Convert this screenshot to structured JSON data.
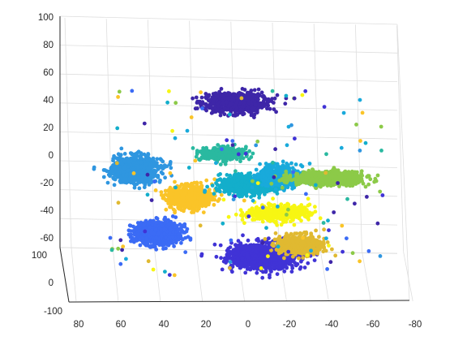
{
  "chart_data": {
    "type": "scatter",
    "title": "",
    "xlabel": "",
    "ylabel": "",
    "zlabel": "",
    "x_ticks": [
      "80",
      "60",
      "40",
      "20",
      "0",
      "-20",
      "-40",
      "-60",
      "-80"
    ],
    "y_ticks": [
      "100",
      "0",
      "-100"
    ],
    "z_ticks": [
      "100",
      "80",
      "60",
      "40",
      "20",
      "0",
      "-20",
      "-40",
      "-60"
    ],
    "xlim": [
      80,
      -80
    ],
    "ylim": [
      -100,
      100
    ],
    "zlim": [
      -60,
      100
    ],
    "grid": true,
    "legend": "none",
    "clusters": [
      {
        "x": 5,
        "z": 40,
        "rx": 13,
        "rz": 6,
        "count": 700,
        "color": "#3e26a8"
      },
      {
        "x": 12,
        "z": 5,
        "rx": 10,
        "rz": 4,
        "count": 350,
        "color": "#2ab9a0"
      },
      {
        "x": 53,
        "z": -6,
        "rx": 10,
        "rz": 8,
        "count": 900,
        "color": "#2f96e0"
      },
      {
        "x": 27,
        "z": -25,
        "rx": 9,
        "rz": 7,
        "count": 700,
        "color": "#fac428"
      },
      {
        "x": 0,
        "z": -17,
        "rx": 12,
        "rz": 6,
        "count": 600,
        "color": "#13aecb"
      },
      {
        "x": -15,
        "z": -10,
        "rx": 8,
        "rz": 7,
        "count": 450,
        "color": "#19aadb"
      },
      {
        "x": -15,
        "z": -36,
        "rx": 13,
        "rz": 5,
        "count": 500,
        "color": "#f7f613"
      },
      {
        "x": -38,
        "z": -12,
        "rx": 15,
        "rz": 4,
        "count": 850,
        "color": "#8cca48"
      },
      {
        "x": 42,
        "z": -50,
        "rx": 10,
        "rz": 7,
        "count": 850,
        "color": "#3b6bf5"
      },
      {
        "x": -8,
        "z": -66,
        "rx": 15,
        "rz": 8,
        "count": 1050,
        "color": "#4033d6"
      },
      {
        "x": -25,
        "z": -58,
        "rx": 9,
        "rz": 6,
        "count": 550,
        "color": "#e0b931"
      }
    ]
  }
}
